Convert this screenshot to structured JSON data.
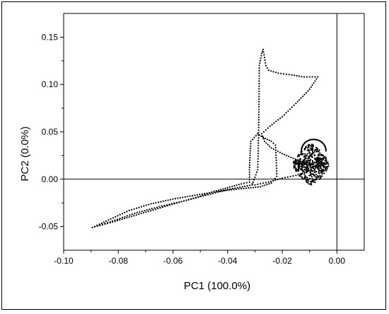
{
  "chart_data": {
    "type": "scatter",
    "xlabel": "PC1 (100.0%)",
    "ylabel": "PC2 (0.0%)",
    "xlim": [
      -0.1,
      0.01
    ],
    "ylim": [
      -0.075,
      0.175
    ],
    "xticks": [
      -0.1,
      -0.08,
      -0.06,
      -0.04,
      -0.02,
      0.0
    ],
    "xtick_labels": [
      "-0.10",
      "-0.08",
      "-0.06",
      "-0.04",
      "-0.02",
      "0.00"
    ],
    "yticks": [
      -0.05,
      0.0,
      0.05,
      0.1,
      0.15
    ],
    "ytick_labels": [
      "-0.05",
      "0.00",
      "0.05",
      "0.10",
      "0.15"
    ],
    "reference_lines": {
      "x": 0,
      "y": 0
    },
    "grid": false,
    "legend": "none",
    "marker_color": "#000000",
    "trajectory": [
      [
        -0.0895,
        -0.051
      ],
      [
        -0.083,
        -0.046
      ],
      [
        -0.076,
        -0.04
      ],
      [
        -0.069,
        -0.034
      ],
      [
        -0.062,
        -0.028
      ],
      [
        -0.056,
        -0.023
      ],
      [
        -0.05,
        -0.018
      ],
      [
        -0.045,
        -0.013
      ],
      [
        -0.04,
        -0.009
      ],
      [
        -0.035,
        -0.005
      ],
      [
        -0.032,
        -0.003
      ],
      [
        -0.032,
        0.01
      ],
      [
        -0.0318,
        0.025
      ],
      [
        -0.0315,
        0.04
      ],
      [
        -0.029,
        0.048
      ],
      [
        -0.027,
        0.044
      ],
      [
        -0.024,
        0.04
      ],
      [
        -0.0225,
        0.036
      ],
      [
        -0.0222,
        0.02
      ],
      [
        -0.022,
        0.003
      ],
      [
        -0.024,
        -0.004
      ],
      [
        -0.028,
        -0.008
      ],
      [
        -0.035,
        -0.01
      ],
      [
        -0.044,
        -0.013
      ],
      [
        -0.052,
        -0.017
      ],
      [
        -0.06,
        -0.021
      ],
      [
        -0.068,
        -0.026
      ],
      [
        -0.076,
        -0.033
      ],
      [
        -0.0895,
        -0.051
      ],
      [
        -0.083,
        -0.045
      ],
      [
        -0.074,
        -0.036
      ],
      [
        -0.065,
        -0.029
      ],
      [
        -0.056,
        -0.023
      ],
      [
        -0.048,
        -0.017
      ],
      [
        -0.04,
        -0.011
      ],
      [
        -0.031,
        -0.006
      ],
      [
        -0.029,
        0.01
      ],
      [
        -0.0288,
        0.03
      ],
      [
        -0.0286,
        0.06
      ],
      [
        -0.0285,
        0.09
      ],
      [
        -0.0284,
        0.12
      ],
      [
        -0.0275,
        0.133
      ],
      [
        -0.027,
        0.137
      ],
      [
        -0.026,
        0.12
      ],
      [
        -0.025,
        0.115
      ],
      [
        -0.0215,
        0.112
      ],
      [
        -0.0165,
        0.11
      ],
      [
        -0.012,
        0.108
      ],
      [
        -0.007,
        0.108
      ],
      [
        -0.01,
        0.095
      ],
      [
        -0.015,
        0.08
      ],
      [
        -0.02,
        0.066
      ],
      [
        -0.0245,
        0.056
      ],
      [
        -0.0275,
        0.048
      ],
      [
        -0.0265,
        0.04
      ],
      [
        -0.024,
        0.033
      ],
      [
        -0.02,
        0.027
      ],
      [
        -0.016,
        0.022
      ],
      [
        -0.012,
        0.018
      ],
      [
        -0.009,
        0.016
      ],
      [
        -0.008,
        0.014
      ],
      [
        -0.011,
        0.008
      ],
      [
        -0.015,
        0.004
      ],
      [
        -0.02,
        0.001
      ],
      [
        -0.025,
        -0.003
      ],
      [
        -0.03,
        -0.006
      ],
      [
        -0.032,
        -0.004
      ]
    ],
    "cluster": {
      "region": "dense cluster of points",
      "x_range": [
        -0.016,
        -0.003
      ],
      "y_range": [
        -0.003,
        0.042
      ]
    }
  }
}
